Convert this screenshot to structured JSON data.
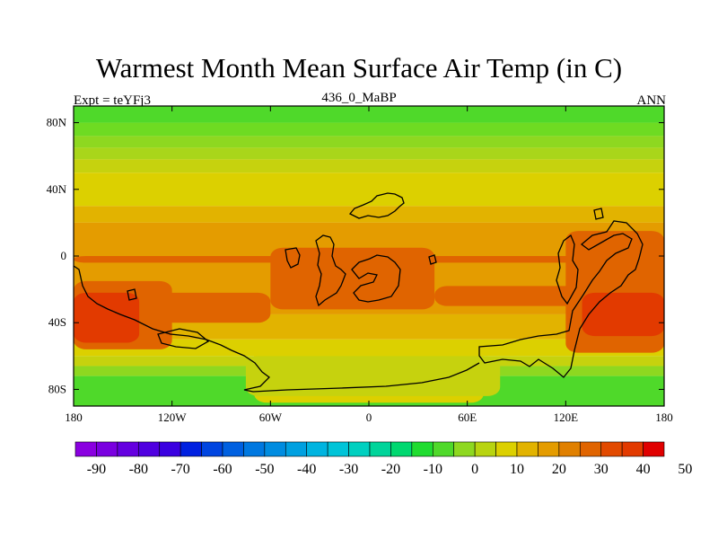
{
  "title": "Warmest Month Mean Surface Air Temp (in C)",
  "left_label": "Expt = teYFj3",
  "center_label": "436_0_MaBP",
  "right_label": "ANN",
  "map": {
    "projection": "cylindrical-equidistant",
    "lon_range": [
      -180,
      180
    ],
    "lat_range": [
      -90,
      90
    ],
    "x_ticks": [
      {
        "lon": -180,
        "label": "180"
      },
      {
        "lon": -120,
        "label": "120W"
      },
      {
        "lon": -60,
        "label": "60W"
      },
      {
        "lon": 0,
        "label": "0"
      },
      {
        "lon": 60,
        "label": "60E"
      },
      {
        "lon": 120,
        "label": "120E"
      },
      {
        "lon": 180,
        "label": "180"
      }
    ],
    "y_ticks": [
      {
        "lat": 80,
        "label": "80N"
      },
      {
        "lat": 40,
        "label": "40N"
      },
      {
        "lat": 0,
        "label": "0"
      },
      {
        "lat": -40,
        "label": "40S"
      },
      {
        "lat": -80,
        "label": "80S"
      }
    ],
    "zonal_bands": [
      {
        "lat1": 90,
        "lat2": 80,
        "color": "#4fd92a"
      },
      {
        "lat1": 80,
        "lat2": 72,
        "color": "#6edb22"
      },
      {
        "lat1": 72,
        "lat2": 65,
        "color": "#8ed820"
      },
      {
        "lat1": 65,
        "lat2": 58,
        "color": "#a9d61a"
      },
      {
        "lat1": 58,
        "lat2": 50,
        "color": "#c6d20e"
      },
      {
        "lat1": 50,
        "lat2": 30,
        "color": "#dcd000"
      },
      {
        "lat1": 30,
        "lat2": 20,
        "color": "#e2b300"
      },
      {
        "lat1": 20,
        "lat2": -35,
        "color": "#e49c00"
      },
      {
        "lat1": -35,
        "lat2": -50,
        "color": "#e2b300"
      },
      {
        "lat1": -50,
        "lat2": -60,
        "color": "#dcd000"
      },
      {
        "lat1": -60,
        "lat2": -66,
        "color": "#c6d20e"
      },
      {
        "lat1": -66,
        "lat2": -72,
        "color": "#8ed820"
      },
      {
        "lat1": -72,
        "lat2": -90,
        "color": "#4fd92a"
      }
    ],
    "warm_color": "#e06400",
    "hot_color": "#e23a00",
    "hot_patches": [
      {
        "lon1": -180,
        "lon2": -140,
        "lat1": -22,
        "lat2": -52
      },
      {
        "lon1": 130,
        "lon2": 180,
        "lat1": -22,
        "lat2": -48
      }
    ],
    "warm_patches": [
      {
        "lon1": -180,
        "lon2": -120,
        "lat1": -15,
        "lat2": -56
      },
      {
        "lon1": -130,
        "lon2": -60,
        "lat1": -22,
        "lat2": -40
      },
      {
        "lon1": -60,
        "lon2": 40,
        "lat1": 5,
        "lat2": -32
      },
      {
        "lon1": 40,
        "lon2": 130,
        "lat1": -18,
        "lat2": -30
      },
      {
        "lon1": 120,
        "lon2": 180,
        "lat1": 15,
        "lat2": -58
      },
      {
        "lon1": -180,
        "lon2": 180,
        "lat1": 0,
        "lat2": -4
      }
    ],
    "cool_patches": [
      {
        "lon1": -70,
        "lon2": 70,
        "lat1": -54,
        "lat2": -88,
        "color": "#dcd000"
      },
      {
        "lon1": -75,
        "lon2": 80,
        "lat1": -60,
        "lat2": -84,
        "color": "#c6d20e"
      }
    ]
  },
  "colorbar": {
    "colors": [
      "#8a00e0",
      "#7a00e0",
      "#6500e0",
      "#5000e0",
      "#3a00e0",
      "#0020e0",
      "#0045e0",
      "#0060e0",
      "#0078e0",
      "#008ce0",
      "#00a0e0",
      "#00b4e0",
      "#00c4d8",
      "#00d0c0",
      "#00d49a",
      "#00d870",
      "#20dc30",
      "#4fd92a",
      "#8ed820",
      "#b8d410",
      "#dcd000",
      "#e2b300",
      "#e49c00",
      "#e08000",
      "#e06400",
      "#e24a00",
      "#e23a00",
      "#e00000"
    ],
    "labels": [
      "-90",
      "-80",
      "-70",
      "-60",
      "-50",
      "-40",
      "-30",
      "-20",
      "-10",
      "0",
      "10",
      "20",
      "30",
      "40",
      "50"
    ]
  }
}
